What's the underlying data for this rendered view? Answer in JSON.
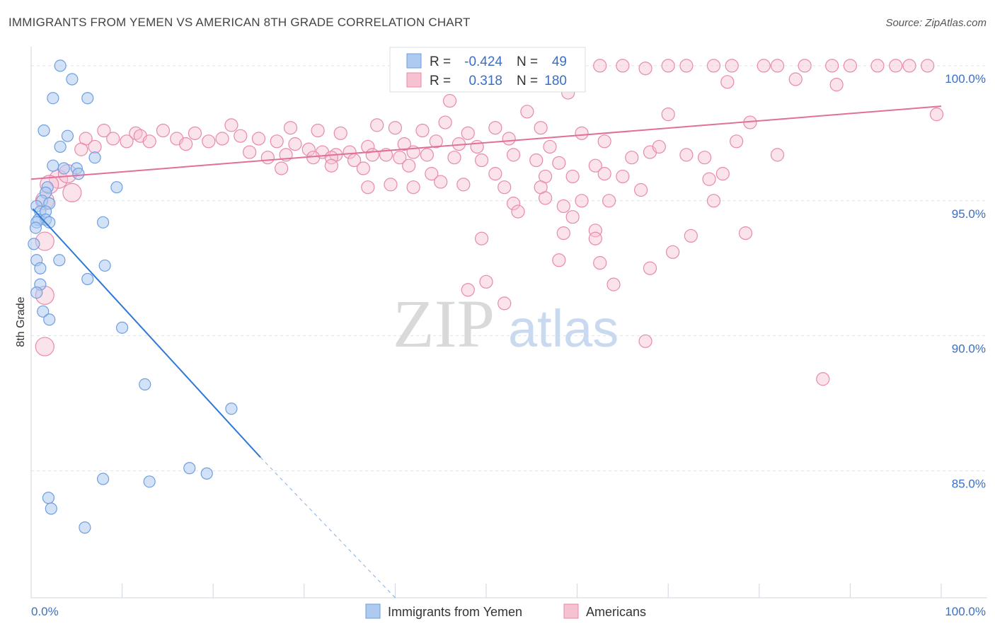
{
  "title": "IMMIGRANTS FROM YEMEN VS AMERICAN 8TH GRADE CORRELATION CHART",
  "source": "Source: ZipAtlas.com",
  "watermark": {
    "zip": "ZIP",
    "atlas": "atlas"
  },
  "colors": {
    "blue": "#6d9fe0",
    "blue_fill": "#aecaf1",
    "blue_line": "#2f79d6",
    "pink": "#e88aa8",
    "pink_fill": "#f6c2d2",
    "pink_line": "#e0709a",
    "grid": "#dde3ea",
    "axis_text": "#3a6fc4"
  },
  "legend": {
    "r_label": "R =",
    "n_label": "N =",
    "rows": [
      {
        "series": "Immigrants from Yemen",
        "r": "-0.424",
        "n": "49"
      },
      {
        "series": "Americans",
        "r": "0.318",
        "n": "180"
      }
    ]
  },
  "bottom_legend": [
    "Immigrants from Yemen",
    "Americans"
  ],
  "chart_data": {
    "type": "scatter",
    "title": "IMMIGRANTS FROM YEMEN VS AMERICAN 8TH GRADE CORRELATION CHART",
    "xlabel": "",
    "ylabel": "8th Grade",
    "xlim": [
      0,
      100
    ],
    "ylim": [
      80.3,
      100.6
    ],
    "x_tick_labels": [
      "0.0%",
      "100.0%"
    ],
    "y_ticks": [
      100,
      95,
      90,
      85
    ],
    "y_tick_labels": [
      "100.0%",
      "95.0%",
      "90.0%",
      "85.0%"
    ],
    "grid": true,
    "legend_position": "top-center",
    "series": [
      {
        "name": "Immigrants from Yemen",
        "color": "#6d9fe0",
        "trend": {
          "x": [
            0.2,
            25.2
          ],
          "y": [
            94.7,
            85.5
          ],
          "dashed_extension_to": [
            40.0,
            80.3
          ]
        },
        "points": [
          {
            "x": 3.2,
            "y": 100.0
          },
          {
            "x": 4.5,
            "y": 99.5
          },
          {
            "x": 2.4,
            "y": 98.8
          },
          {
            "x": 6.2,
            "y": 98.8
          },
          {
            "x": 1.4,
            "y": 97.6
          },
          {
            "x": 4.0,
            "y": 97.4
          },
          {
            "x": 3.2,
            "y": 97.0
          },
          {
            "x": 7.0,
            "y": 96.6
          },
          {
            "x": 2.4,
            "y": 96.3
          },
          {
            "x": 3.6,
            "y": 96.2
          },
          {
            "x": 5.0,
            "y": 96.2
          },
          {
            "x": 5.2,
            "y": 96.0
          },
          {
            "x": 1.8,
            "y": 95.5
          },
          {
            "x": 9.4,
            "y": 95.5
          },
          {
            "x": 1.6,
            "y": 95.3
          },
          {
            "x": 1.2,
            "y": 95.0
          },
          {
            "x": 2.0,
            "y": 94.9
          },
          {
            "x": 0.6,
            "y": 94.8
          },
          {
            "x": 1.0,
            "y": 94.6
          },
          {
            "x": 1.6,
            "y": 94.6
          },
          {
            "x": 0.8,
            "y": 94.3
          },
          {
            "x": 1.6,
            "y": 94.3
          },
          {
            "x": 2.0,
            "y": 94.2
          },
          {
            "x": 0.6,
            "y": 94.2
          },
          {
            "x": 7.9,
            "y": 94.2
          },
          {
            "x": 0.5,
            "y": 94.0
          },
          {
            "x": 0.3,
            "y": 93.4
          },
          {
            "x": 0.6,
            "y": 92.8
          },
          {
            "x": 3.1,
            "y": 92.8
          },
          {
            "x": 8.1,
            "y": 92.6
          },
          {
            "x": 1.0,
            "y": 92.5
          },
          {
            "x": 6.2,
            "y": 92.1
          },
          {
            "x": 1.0,
            "y": 91.9
          },
          {
            "x": 0.6,
            "y": 91.6
          },
          {
            "x": 1.3,
            "y": 90.9
          },
          {
            "x": 2.0,
            "y": 90.6
          },
          {
            "x": 10.0,
            "y": 90.3
          },
          {
            "x": 12.5,
            "y": 88.2
          },
          {
            "x": 22.0,
            "y": 87.3
          },
          {
            "x": 17.4,
            "y": 85.1
          },
          {
            "x": 19.3,
            "y": 84.9
          },
          {
            "x": 7.9,
            "y": 84.7
          },
          {
            "x": 13.0,
            "y": 84.6
          },
          {
            "x": 1.9,
            "y": 84.0
          },
          {
            "x": 2.2,
            "y": 83.6
          },
          {
            "x": 5.9,
            "y": 82.9
          }
        ]
      },
      {
        "name": "Americans",
        "color": "#e88aa8",
        "trend": {
          "x": [
            0,
            100
          ],
          "y": [
            95.8,
            98.5
          ]
        },
        "points": [
          {
            "x": 65.0,
            "y": 100.0
          },
          {
            "x": 70.0,
            "y": 100.0
          },
          {
            "x": 72.0,
            "y": 100.0
          },
          {
            "x": 75.0,
            "y": 100.0
          },
          {
            "x": 77.0,
            "y": 100.0
          },
          {
            "x": 80.5,
            "y": 100.0
          },
          {
            "x": 82.0,
            "y": 100.0
          },
          {
            "x": 85.0,
            "y": 100.0
          },
          {
            "x": 88.0,
            "y": 100.0
          },
          {
            "x": 90.0,
            "y": 100.0
          },
          {
            "x": 93.0,
            "y": 100.0
          },
          {
            "x": 95.0,
            "y": 100.0
          },
          {
            "x": 96.5,
            "y": 100.0
          },
          {
            "x": 98.5,
            "y": 100.0
          },
          {
            "x": 62.5,
            "y": 100.0
          },
          {
            "x": 67.5,
            "y": 99.9
          },
          {
            "x": 84.0,
            "y": 99.5
          },
          {
            "x": 88.5,
            "y": 99.3
          },
          {
            "x": 76.5,
            "y": 99.4
          },
          {
            "x": 59.0,
            "y": 99.0
          },
          {
            "x": 46.0,
            "y": 98.7
          },
          {
            "x": 54.5,
            "y": 98.3
          },
          {
            "x": 70.0,
            "y": 98.2
          },
          {
            "x": 99.5,
            "y": 98.2
          },
          {
            "x": 45.5,
            "y": 97.9
          },
          {
            "x": 38.0,
            "y": 97.8
          },
          {
            "x": 40.0,
            "y": 97.7
          },
          {
            "x": 43.0,
            "y": 97.6
          },
          {
            "x": 51.0,
            "y": 97.7
          },
          {
            "x": 56.0,
            "y": 97.7
          },
          {
            "x": 48.0,
            "y": 97.5
          },
          {
            "x": 60.5,
            "y": 97.5
          },
          {
            "x": 79.0,
            "y": 97.9
          },
          {
            "x": 34.0,
            "y": 97.5
          },
          {
            "x": 31.5,
            "y": 97.6
          },
          {
            "x": 28.5,
            "y": 97.7
          },
          {
            "x": 22.0,
            "y": 97.8
          },
          {
            "x": 18.0,
            "y": 97.5
          },
          {
            "x": 14.5,
            "y": 97.6
          },
          {
            "x": 11.5,
            "y": 97.5
          },
          {
            "x": 8.0,
            "y": 97.6
          },
          {
            "x": 6.0,
            "y": 97.3
          },
          {
            "x": 9.0,
            "y": 97.3
          },
          {
            "x": 10.5,
            "y": 97.2
          },
          {
            "x": 12.0,
            "y": 97.4
          },
          {
            "x": 13.0,
            "y": 97.2
          },
          {
            "x": 16.0,
            "y": 97.3
          },
          {
            "x": 17.0,
            "y": 97.1
          },
          {
            "x": 19.5,
            "y": 97.2
          },
          {
            "x": 21.0,
            "y": 97.3
          },
          {
            "x": 23.0,
            "y": 97.4
          },
          {
            "x": 25.0,
            "y": 97.3
          },
          {
            "x": 27.0,
            "y": 97.2
          },
          {
            "x": 29.0,
            "y": 97.1
          },
          {
            "x": 30.5,
            "y": 96.9
          },
          {
            "x": 32.0,
            "y": 96.8
          },
          {
            "x": 33.5,
            "y": 96.7
          },
          {
            "x": 35.0,
            "y": 96.8
          },
          {
            "x": 37.0,
            "y": 97.0
          },
          {
            "x": 39.0,
            "y": 96.7
          },
          {
            "x": 41.0,
            "y": 97.1
          },
          {
            "x": 42.0,
            "y": 96.8
          },
          {
            "x": 44.5,
            "y": 97.2
          },
          {
            "x": 47.0,
            "y": 97.1
          },
          {
            "x": 49.0,
            "y": 97.0
          },
          {
            "x": 52.5,
            "y": 97.3
          },
          {
            "x": 57.0,
            "y": 97.0
          },
          {
            "x": 63.0,
            "y": 97.2
          },
          {
            "x": 68.0,
            "y": 96.8
          },
          {
            "x": 69.0,
            "y": 97.0
          },
          {
            "x": 77.5,
            "y": 97.2
          },
          {
            "x": 82.0,
            "y": 96.7
          },
          {
            "x": 24.0,
            "y": 96.8
          },
          {
            "x": 26.0,
            "y": 96.6
          },
          {
            "x": 28.0,
            "y": 96.7
          },
          {
            "x": 31.0,
            "y": 96.6
          },
          {
            "x": 33.0,
            "y": 96.6
          },
          {
            "x": 35.5,
            "y": 96.5
          },
          {
            "x": 37.5,
            "y": 96.7
          },
          {
            "x": 40.5,
            "y": 96.6
          },
          {
            "x": 43.5,
            "y": 96.7
          },
          {
            "x": 46.5,
            "y": 96.6
          },
          {
            "x": 49.5,
            "y": 96.5
          },
          {
            "x": 53.0,
            "y": 96.7
          },
          {
            "x": 55.5,
            "y": 96.5
          },
          {
            "x": 58.0,
            "y": 96.4
          },
          {
            "x": 62.0,
            "y": 96.3
          },
          {
            "x": 66.0,
            "y": 96.6
          },
          {
            "x": 72.0,
            "y": 96.7
          },
          {
            "x": 74.0,
            "y": 96.6
          },
          {
            "x": 27.5,
            "y": 96.2
          },
          {
            "x": 33.0,
            "y": 96.3
          },
          {
            "x": 36.5,
            "y": 96.2
          },
          {
            "x": 41.5,
            "y": 96.3
          },
          {
            "x": 44.0,
            "y": 96.0
          },
          {
            "x": 51.0,
            "y": 96.0
          },
          {
            "x": 56.5,
            "y": 95.9
          },
          {
            "x": 59.5,
            "y": 95.9
          },
          {
            "x": 63.0,
            "y": 96.0
          },
          {
            "x": 65.0,
            "y": 95.9
          },
          {
            "x": 74.5,
            "y": 95.8
          },
          {
            "x": 76.0,
            "y": 96.0
          },
          {
            "x": 39.5,
            "y": 95.6
          },
          {
            "x": 45.0,
            "y": 95.7
          },
          {
            "x": 37.0,
            "y": 95.5
          },
          {
            "x": 42.0,
            "y": 95.5
          },
          {
            "x": 47.5,
            "y": 95.6
          },
          {
            "x": 52.0,
            "y": 95.5
          },
          {
            "x": 56.0,
            "y": 95.5
          },
          {
            "x": 67.0,
            "y": 95.4
          },
          {
            "x": 56.5,
            "y": 95.1
          },
          {
            "x": 63.5,
            "y": 95.0
          },
          {
            "x": 75.0,
            "y": 95.0
          },
          {
            "x": 53.0,
            "y": 94.9
          },
          {
            "x": 58.5,
            "y": 94.8
          },
          {
            "x": 60.5,
            "y": 95.0
          },
          {
            "x": 53.5,
            "y": 94.6
          },
          {
            "x": 59.5,
            "y": 94.4
          },
          {
            "x": 58.5,
            "y": 93.8
          },
          {
            "x": 62.0,
            "y": 93.9
          },
          {
            "x": 72.5,
            "y": 93.7
          },
          {
            "x": 78.5,
            "y": 93.8
          },
          {
            "x": 62.0,
            "y": 93.6
          },
          {
            "x": 49.5,
            "y": 93.6
          },
          {
            "x": 58.0,
            "y": 92.8
          },
          {
            "x": 62.5,
            "y": 92.7
          },
          {
            "x": 68.0,
            "y": 92.5
          },
          {
            "x": 70.5,
            "y": 93.1
          },
          {
            "x": 50.0,
            "y": 92.0
          },
          {
            "x": 48.0,
            "y": 91.7
          },
          {
            "x": 64.0,
            "y": 91.9
          },
          {
            "x": 52.0,
            "y": 91.2
          },
          {
            "x": 67.5,
            "y": 89.8
          },
          {
            "x": 87.0,
            "y": 88.4
          },
          {
            "x": 1.5,
            "y": 89.6
          },
          {
            "x": 1.5,
            "y": 91.5
          },
          {
            "x": 1.5,
            "y": 93.5
          },
          {
            "x": 1.5,
            "y": 95.0
          },
          {
            "x": 3.0,
            "y": 95.8
          },
          {
            "x": 4.0,
            "y": 96.0
          },
          {
            "x": 5.5,
            "y": 96.9
          },
          {
            "x": 7.0,
            "y": 97.0
          },
          {
            "x": 4.5,
            "y": 95.3
          },
          {
            "x": 2.0,
            "y": 95.6
          }
        ]
      }
    ]
  }
}
